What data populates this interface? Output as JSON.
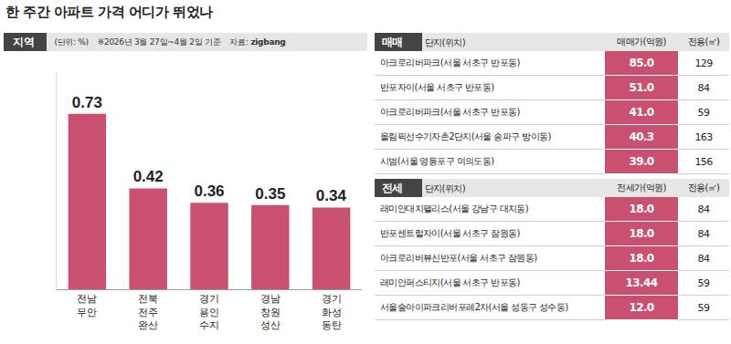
{
  "title": "한 주간 아파트 가격 어디가 뛰었나",
  "panel": {
    "label": "지역",
    "unit": "(단위: %)",
    "date_note": "※2026년 3월 27일~4월 2일 기준",
    "source": "자료:",
    "source_logo": "zigbang"
  },
  "chart_data": {
    "type": "bar",
    "categories": [
      "전남 무안",
      "전북 전주 완산",
      "경기 용인 수지",
      "경남 창원 성산",
      "경기 화성 동탄"
    ],
    "values": [
      0.73,
      0.42,
      0.36,
      0.35,
      0.34
    ],
    "color": "#c9506f",
    "ylim": [
      0,
      0.9
    ],
    "data_labels": true,
    "tick_labels": "x",
    "grid": false
  },
  "tables": [
    {
      "label": "매매",
      "columns": [
        "단지(위치)",
        "매매가(억원)",
        "전용(㎡)"
      ],
      "color": "#c9506f",
      "rows": [
        [
          "아크로리버파크(서울 서초구 반포동)",
          "85.0",
          "129"
        ],
        [
          "반포자이(서울 서초구 반포동)",
          "51.0",
          "84"
        ],
        [
          "아크로리버파크(서울 서초구 반포동)",
          "41.0",
          "59"
        ],
        [
          "올림픽선수기자촌2단지(서울 송파구 방이동)",
          "40.3",
          "163"
        ],
        [
          "시범(서울 영등포구 여의도동)",
          "39.0",
          "156"
        ]
      ]
    },
    {
      "label": "전세",
      "columns": [
        "단지(위치)",
        "전세가(억원)",
        "전용(㎡)"
      ],
      "color": "#c9506f",
      "rows": [
        [
          "래미안대치팰리스(서울 강남구 대치동)",
          "18.0",
          "84"
        ],
        [
          "반포센트럴자이(서울 서초구 잠원동)",
          "18.0",
          "84"
        ],
        [
          "아크로리버뷰신반포(서울 서초구 잠원동)",
          "18.0",
          "84"
        ],
        [
          "래미안퍼스티지(서울 서초구 반포동)",
          "13.44",
          "59"
        ],
        [
          "서울숲아이파크리버포레2차(서울 성동구 성수동)",
          "12.0",
          "59"
        ]
      ]
    }
  ]
}
